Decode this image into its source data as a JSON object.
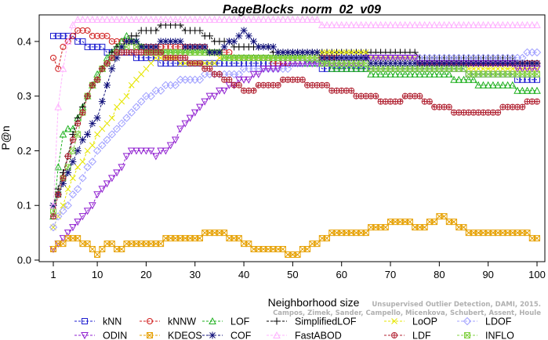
{
  "chart_data": {
    "type": "line",
    "title": "PageBlocks_norm_02_v09",
    "xlabel": "Neighborhood size",
    "ylabel": "P@n",
    "xlim": [
      1,
      100
    ],
    "ylim": [
      0,
      0.44
    ],
    "x_ticks": [
      1,
      10,
      20,
      30,
      40,
      50,
      60,
      70,
      80,
      90,
      100
    ],
    "y_ticks": [
      0.0,
      0.1,
      0.2,
      0.3,
      0.4
    ],
    "x_tick_labels": [
      "1",
      "10",
      "20",
      "30",
      "40",
      "50",
      "60",
      "70",
      "80",
      "90",
      "100"
    ],
    "y_tick_labels": [
      "0.0",
      "0.1",
      "0.2",
      "0.3",
      "0.4"
    ],
    "grid": false,
    "legend_position": "bottom",
    "watermark": [
      "Unsupervised Outlier Detection, DAMI, 2015.",
      "Campos, Zimek, Sander, Campello, Micenkova, Schubert, Assent, Houle"
    ],
    "series": [
      {
        "name": "kNN",
        "color": "#1f1fd0",
        "marker": "square",
        "points": [
          [
            1,
            0.41
          ],
          [
            5,
            0.41
          ],
          [
            8,
            0.39
          ],
          [
            15,
            0.38
          ],
          [
            20,
            0.37
          ],
          [
            25,
            0.36
          ],
          [
            30,
            0.36
          ],
          [
            40,
            0.36
          ],
          [
            50,
            0.36
          ],
          [
            60,
            0.35
          ],
          [
            70,
            0.35
          ],
          [
            80,
            0.35
          ],
          [
            90,
            0.34
          ],
          [
            100,
            0.33
          ]
        ]
      },
      {
        "name": "kNNW",
        "color": "#d01f1f",
        "marker": "circle",
        "points": [
          [
            1,
            0.37
          ],
          [
            2,
            0.35
          ],
          [
            3,
            0.39
          ],
          [
            4,
            0.4
          ],
          [
            6,
            0.42
          ],
          [
            10,
            0.41
          ],
          [
            15,
            0.4
          ],
          [
            20,
            0.39
          ],
          [
            30,
            0.39
          ],
          [
            40,
            0.37
          ],
          [
            50,
            0.36
          ],
          [
            60,
            0.37
          ],
          [
            70,
            0.37
          ],
          [
            80,
            0.36
          ],
          [
            90,
            0.36
          ],
          [
            100,
            0.36
          ]
        ]
      },
      {
        "name": "LOF",
        "color": "#1fb01f",
        "marker": "triangle",
        "points": [
          [
            1,
            0.08
          ],
          [
            2,
            0.17
          ],
          [
            3,
            0.23
          ],
          [
            5,
            0.24
          ],
          [
            7,
            0.28
          ],
          [
            10,
            0.34
          ],
          [
            13,
            0.38
          ],
          [
            16,
            0.41
          ],
          [
            20,
            0.38
          ],
          [
            30,
            0.38
          ],
          [
            40,
            0.37
          ],
          [
            50,
            0.37
          ],
          [
            60,
            0.35
          ],
          [
            70,
            0.34
          ],
          [
            80,
            0.34
          ],
          [
            90,
            0.32
          ],
          [
            100,
            0.31
          ]
        ]
      },
      {
        "name": "SimplifiedLOF",
        "color": "#000000",
        "marker": "plus",
        "points": [
          [
            1,
            0.1
          ],
          [
            2,
            0.13
          ],
          [
            4,
            0.19
          ],
          [
            6,
            0.26
          ],
          [
            8,
            0.3
          ],
          [
            10,
            0.33
          ],
          [
            13,
            0.38
          ],
          [
            16,
            0.4
          ],
          [
            20,
            0.42
          ],
          [
            25,
            0.43
          ],
          [
            30,
            0.42
          ],
          [
            35,
            0.4
          ],
          [
            40,
            0.39
          ],
          [
            50,
            0.38
          ],
          [
            60,
            0.38
          ],
          [
            70,
            0.38
          ],
          [
            80,
            0.37
          ],
          [
            90,
            0.37
          ],
          [
            100,
            0.36
          ]
        ]
      },
      {
        "name": "LoOP",
        "color": "#e6e600",
        "marker": "cross",
        "points": [
          [
            1,
            0.06
          ],
          [
            3,
            0.1
          ],
          [
            5,
            0.15
          ],
          [
            8,
            0.2
          ],
          [
            12,
            0.25
          ],
          [
            15,
            0.29
          ],
          [
            18,
            0.33
          ],
          [
            22,
            0.37
          ],
          [
            30,
            0.36
          ],
          [
            40,
            0.37
          ],
          [
            50,
            0.37
          ],
          [
            60,
            0.38
          ],
          [
            70,
            0.37
          ],
          [
            80,
            0.36
          ],
          [
            90,
            0.35
          ],
          [
            100,
            0.35
          ]
        ]
      },
      {
        "name": "LDOF",
        "color": "#a0a0ff",
        "marker": "diamond",
        "points": [
          [
            1,
            0.06
          ],
          [
            3,
            0.09
          ],
          [
            6,
            0.13
          ],
          [
            10,
            0.2
          ],
          [
            14,
            0.24
          ],
          [
            18,
            0.28
          ],
          [
            22,
            0.31
          ],
          [
            28,
            0.33
          ],
          [
            35,
            0.34
          ],
          [
            45,
            0.35
          ],
          [
            55,
            0.36
          ],
          [
            65,
            0.37
          ],
          [
            75,
            0.37
          ],
          [
            85,
            0.37
          ],
          [
            95,
            0.37
          ],
          [
            100,
            0.38
          ]
        ]
      },
      {
        "name": "ODIN",
        "color": "#9020d0",
        "marker": "triangle-down",
        "points": [
          [
            1,
            0.02
          ],
          [
            3,
            0.04
          ],
          [
            5,
            0.06
          ],
          [
            8,
            0.09
          ],
          [
            11,
            0.13
          ],
          [
            14,
            0.16
          ],
          [
            17,
            0.2
          ],
          [
            20,
            0.2
          ],
          [
            22,
            0.19
          ],
          [
            25,
            0.21
          ],
          [
            28,
            0.25
          ],
          [
            32,
            0.29
          ],
          [
            36,
            0.31
          ],
          [
            40,
            0.33
          ],
          [
            45,
            0.35
          ],
          [
            50,
            0.36
          ],
          [
            60,
            0.36
          ],
          [
            70,
            0.37
          ],
          [
            80,
            0.36
          ],
          [
            90,
            0.36
          ],
          [
            100,
            0.35
          ]
        ]
      },
      {
        "name": "KDEOS",
        "color": "#e6a000",
        "marker": "hash-square",
        "points": [
          [
            1,
            0.02
          ],
          [
            3,
            0.03
          ],
          [
            5,
            0.04
          ],
          [
            7,
            0.03
          ],
          [
            9,
            0.02
          ],
          [
            10,
            0.01
          ],
          [
            12,
            0.03
          ],
          [
            14,
            0.02
          ],
          [
            17,
            0.03
          ],
          [
            22,
            0.03
          ],
          [
            26,
            0.04
          ],
          [
            30,
            0.04
          ],
          [
            34,
            0.05
          ],
          [
            38,
            0.04
          ],
          [
            42,
            0.02
          ],
          [
            46,
            0.02
          ],
          [
            50,
            0.01
          ],
          [
            53,
            0.02
          ],
          [
            56,
            0.04
          ],
          [
            60,
            0.05
          ],
          [
            64,
            0.05
          ],
          [
            67,
            0.06
          ],
          [
            72,
            0.07
          ],
          [
            76,
            0.06
          ],
          [
            79,
            0.07
          ],
          [
            81,
            0.08
          ],
          [
            84,
            0.06
          ],
          [
            87,
            0.05
          ],
          [
            92,
            0.05
          ],
          [
            96,
            0.05
          ],
          [
            100,
            0.04
          ]
        ]
      },
      {
        "name": "INFLO",
        "color": "#80d040",
        "marker": "hash-square",
        "points": [
          [
            1,
            0.09
          ],
          [
            2,
            0.12
          ],
          [
            4,
            0.17
          ],
          [
            6,
            0.23
          ],
          [
            8,
            0.3
          ],
          [
            11,
            0.35
          ],
          [
            14,
            0.38
          ],
          [
            17,
            0.4
          ],
          [
            20,
            0.38
          ],
          [
            30,
            0.38
          ],
          [
            40,
            0.37
          ],
          [
            50,
            0.37
          ],
          [
            60,
            0.36
          ],
          [
            70,
            0.35
          ],
          [
            80,
            0.35
          ],
          [
            90,
            0.34
          ],
          [
            100,
            0.34
          ]
        ]
      },
      {
        "name": "COF",
        "color": "#10107a",
        "marker": "asterisk",
        "points": [
          [
            1,
            0.1
          ],
          [
            2,
            0.12
          ],
          [
            4,
            0.16
          ],
          [
            6,
            0.2
          ],
          [
            8,
            0.23
          ],
          [
            10,
            0.26
          ],
          [
            12,
            0.32
          ],
          [
            14,
            0.37
          ],
          [
            16,
            0.4
          ],
          [
            20,
            0.39
          ],
          [
            25,
            0.4
          ],
          [
            30,
            0.39
          ],
          [
            35,
            0.38
          ],
          [
            40,
            0.42
          ],
          [
            43,
            0.39
          ],
          [
            50,
            0.38
          ],
          [
            60,
            0.37
          ],
          [
            70,
            0.36
          ],
          [
            80,
            0.36
          ],
          [
            90,
            0.36
          ],
          [
            100,
            0.36
          ]
        ]
      },
      {
        "name": "FastABOD",
        "color": "#ffb0ff",
        "marker": "triangle",
        "points": [
          [
            1,
            0.1
          ],
          [
            2,
            0.28
          ],
          [
            3,
            0.35
          ],
          [
            4,
            0.4
          ],
          [
            5,
            0.43
          ],
          [
            6,
            0.44
          ],
          [
            10,
            0.44
          ],
          [
            20,
            0.44
          ],
          [
            30,
            0.44
          ],
          [
            40,
            0.44
          ],
          [
            50,
            0.44
          ],
          [
            60,
            0.43
          ],
          [
            70,
            0.43
          ],
          [
            80,
            0.43
          ],
          [
            90,
            0.43
          ],
          [
            100,
            0.43
          ]
        ]
      },
      {
        "name": "LDF",
        "color": "#b02030",
        "marker": "circle-plus",
        "points": [
          [
            1,
            0.08
          ],
          [
            3,
            0.15
          ],
          [
            5,
            0.22
          ],
          [
            8,
            0.3
          ],
          [
            11,
            0.35
          ],
          [
            14,
            0.38
          ],
          [
            20,
            0.38
          ],
          [
            26,
            0.37
          ],
          [
            30,
            0.36
          ],
          [
            35,
            0.34
          ],
          [
            40,
            0.31
          ],
          [
            45,
            0.32
          ],
          [
            50,
            0.33
          ],
          [
            55,
            0.32
          ],
          [
            60,
            0.31
          ],
          [
            65,
            0.3
          ],
          [
            70,
            0.29
          ],
          [
            75,
            0.3
          ],
          [
            80,
            0.28
          ],
          [
            85,
            0.27
          ],
          [
            90,
            0.27
          ],
          [
            95,
            0.28
          ],
          [
            100,
            0.29
          ]
        ]
      }
    ],
    "legend_rows": [
      [
        "kNN",
        "kNNW",
        "LOF",
        "SimplifiedLOF",
        "LoOP",
        "LDOF"
      ],
      [
        "ODIN",
        "KDEOS",
        "COF",
        "FastABOD",
        "LDF",
        "INFLO"
      ]
    ]
  }
}
